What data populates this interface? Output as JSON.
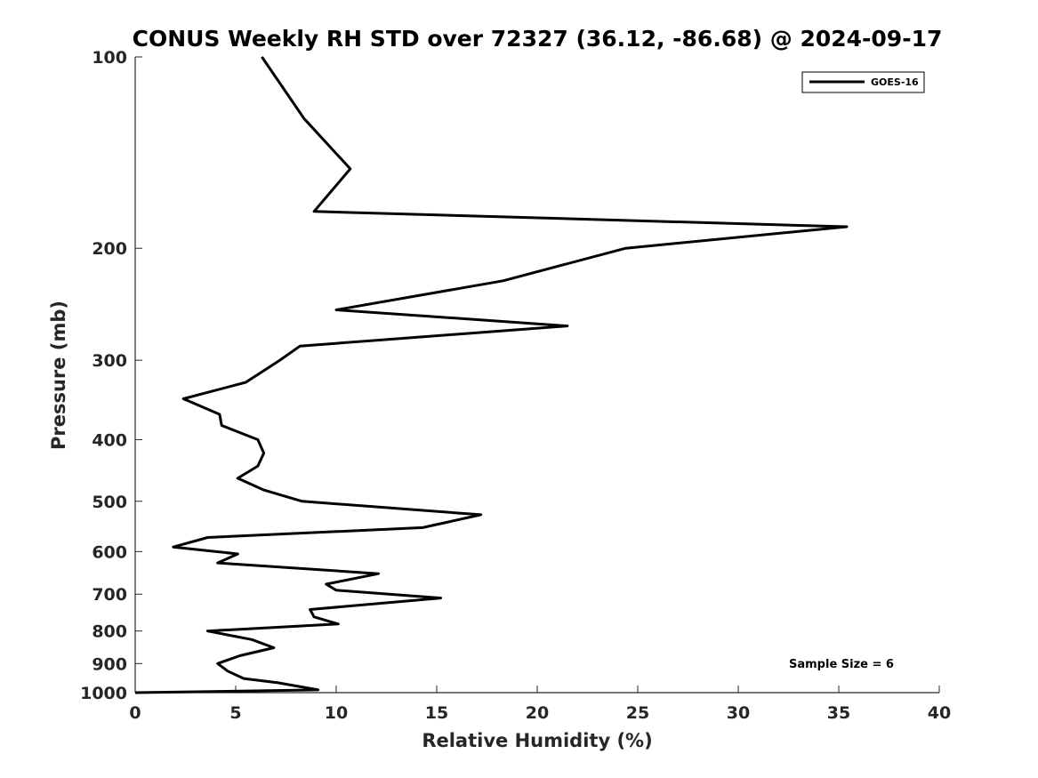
{
  "chart_data": {
    "type": "line",
    "title": "CONUS Weekly RH STD over 72327 (36.12, -86.68) @ 2024-09-17",
    "xlabel": "Relative Humidity (%)",
    "ylabel": "Pressure (mb)",
    "xlim": [
      0,
      40
    ],
    "ylim": [
      1000,
      100
    ],
    "y_scale": "log",
    "y_reversed": true,
    "grid": false,
    "x_ticks": [
      0,
      5,
      10,
      15,
      20,
      25,
      30,
      35,
      40
    ],
    "y_ticks": [
      100,
      200,
      300,
      400,
      500,
      600,
      700,
      800,
      900,
      1000
    ],
    "legend_position": "top-right",
    "annotation": "Sample Size = 6",
    "series": [
      {
        "name": "GOES-16",
        "color": "#000000",
        "x": [
          6.3,
          8.4,
          10.7,
          8.9,
          35.4,
          24.4,
          18.3,
          10.0,
          21.5,
          8.2,
          7.2,
          5.5,
          2.4,
          4.2,
          4.3,
          6.1,
          6.4,
          6.1,
          5.1,
          6.4,
          8.3,
          17.2,
          14.3,
          3.6,
          1.9,
          5.1,
          4.1,
          12.1,
          9.5,
          10.0,
          15.2,
          8.7,
          8.9,
          10.1,
          3.6,
          5.8,
          6.9,
          5.2,
          4.1,
          4.6,
          5.4,
          7.1,
          9.1,
          0.0
        ],
        "y": [
          100,
          125,
          150,
          175,
          185,
          200,
          225,
          250,
          265,
          285,
          300,
          325,
          345,
          365,
          380,
          400,
          420,
          440,
          460,
          480,
          500,
          525,
          550,
          570,
          590,
          605,
          625,
          650,
          675,
          690,
          710,
          740,
          760,
          780,
          800,
          825,
          850,
          875,
          900,
          925,
          950,
          965,
          990,
          1000
        ]
      }
    ]
  }
}
